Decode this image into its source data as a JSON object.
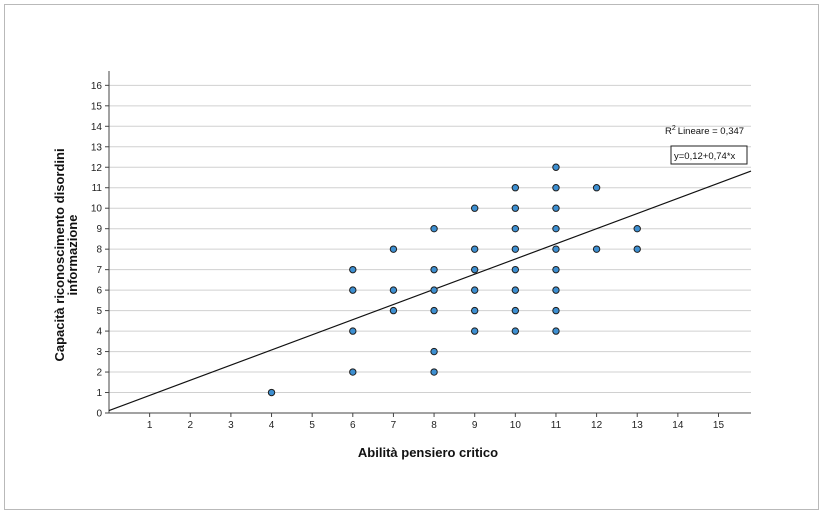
{
  "chart_data": {
    "type": "scatter",
    "xlabel": "Abilità pensiero critico",
    "ylabel_lines": [
      "Capacità riconoscimento disordini",
      "informazione"
    ],
    "xlim": [
      0,
      15.8
    ],
    "ylim": [
      0,
      16.7
    ],
    "xticks": [
      1,
      2,
      3,
      4,
      5,
      6,
      7,
      8,
      9,
      10,
      11,
      12,
      13,
      14,
      15
    ],
    "yticks": [
      0,
      1,
      2,
      3,
      4,
      5,
      6,
      7,
      8,
      9,
      10,
      11,
      12,
      13,
      14,
      15,
      16
    ],
    "grid": "horizontal",
    "points": [
      {
        "x": 4,
        "y": 1
      },
      {
        "x": 6,
        "y": 2
      },
      {
        "x": 6,
        "y": 4
      },
      {
        "x": 6,
        "y": 6
      },
      {
        "x": 6,
        "y": 7
      },
      {
        "x": 7,
        "y": 5
      },
      {
        "x": 7,
        "y": 6
      },
      {
        "x": 7,
        "y": 8
      },
      {
        "x": 8,
        "y": 2
      },
      {
        "x": 8,
        "y": 3
      },
      {
        "x": 8,
        "y": 5
      },
      {
        "x": 8,
        "y": 6
      },
      {
        "x": 8,
        "y": 7
      },
      {
        "x": 8,
        "y": 9
      },
      {
        "x": 9,
        "y": 4
      },
      {
        "x": 9,
        "y": 5
      },
      {
        "x": 9,
        "y": 6
      },
      {
        "x": 9,
        "y": 7
      },
      {
        "x": 9,
        "y": 8
      },
      {
        "x": 9,
        "y": 10
      },
      {
        "x": 10,
        "y": 4
      },
      {
        "x": 10,
        "y": 5
      },
      {
        "x": 10,
        "y": 6
      },
      {
        "x": 10,
        "y": 7
      },
      {
        "x": 10,
        "y": 8
      },
      {
        "x": 10,
        "y": 9
      },
      {
        "x": 10,
        "y": 10
      },
      {
        "x": 10,
        "y": 11
      },
      {
        "x": 11,
        "y": 4
      },
      {
        "x": 11,
        "y": 5
      },
      {
        "x": 11,
        "y": 6
      },
      {
        "x": 11,
        "y": 7
      },
      {
        "x": 11,
        "y": 8
      },
      {
        "x": 11,
        "y": 9
      },
      {
        "x": 11,
        "y": 10
      },
      {
        "x": 11,
        "y": 11
      },
      {
        "x": 11,
        "y": 12
      },
      {
        "x": 12,
        "y": 8
      },
      {
        "x": 12,
        "y": 11
      },
      {
        "x": 13,
        "y": 8
      },
      {
        "x": 13,
        "y": 9
      }
    ],
    "fit_line": {
      "intercept": 0.12,
      "slope": 0.74
    },
    "r2_label": "Lineare = 0,347",
    "r2_prefix": "R",
    "r2_sup": "2",
    "equation_label": "y=0,12+0,74*x",
    "colors": {
      "marker_fill": "#3d8fd1",
      "marker_stroke": "#1e1e1e",
      "grid": "#d0d0d0",
      "fit_line": "#111111"
    }
  }
}
